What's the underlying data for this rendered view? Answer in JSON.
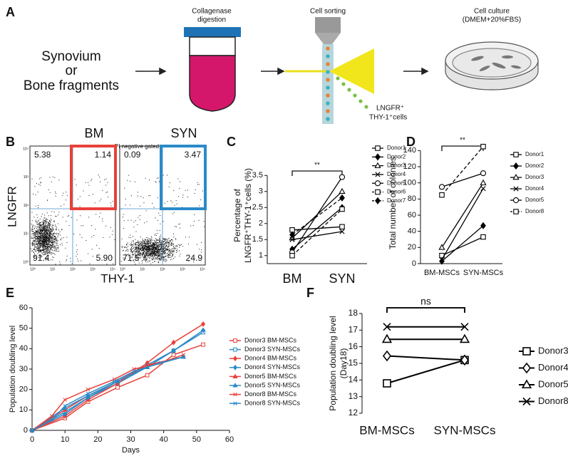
{
  "panel_a": {
    "label": "A",
    "source": [
      "Synovium",
      "or",
      "Bone fragments"
    ],
    "digestion": [
      "Collagenase",
      "digestion"
    ],
    "sorting": "Cell sorting",
    "culture": [
      "Cell culture",
      "(DMEM+20%FBS)"
    ],
    "cells": [
      "LNGFR⁺",
      "THY-1⁺cells"
    ]
  },
  "panel_b": {
    "label": "B",
    "gate": "PI negative gated",
    "ylabel": "LNGFR",
    "xlabel": "THY-1",
    "axis_ticks": [
      "10⁰",
      "10¹",
      "10²",
      "10³",
      "10⁴"
    ],
    "plots": [
      {
        "name": "BM",
        "color": "#e8413a",
        "quadrants": [
          "5.38",
          "1.14",
          "91.4",
          "5.90"
        ]
      },
      {
        "name": "SYN",
        "color": "#2a8ac8",
        "quadrants": [
          "0.09",
          "3.47",
          "71.5",
          "24.9"
        ]
      }
    ]
  },
  "chart_data": [
    {
      "type": "line",
      "panel_label": "C",
      "ylabel": [
        "Percentage of",
        "LNGFR⁺THY-1⁺cells (%)"
      ],
      "annotation": "**",
      "categories": [
        "BM",
        "SYN"
      ],
      "category_colors": [
        "#e8413a",
        "#2a8ac8"
      ],
      "color": "#000000",
      "ylim": [
        0.75,
        3.75
      ],
      "yticks": [
        1,
        1.5,
        2,
        2.5,
        3,
        3.5
      ],
      "series": [
        {
          "name": "Donor1",
          "marker": "square",
          "values": [
            1.8,
            1.9
          ]
        },
        {
          "name": "Donor2",
          "marker": "diamond",
          "filled": true,
          "values": [
            1.2,
            2.5
          ]
        },
        {
          "name": "Donor3",
          "marker": "triangle",
          "values": [
            1.55,
            3.0
          ]
        },
        {
          "name": "Donor4",
          "marker": "x",
          "values": [
            1.5,
            1.75
          ]
        },
        {
          "name": "Donor5",
          "marker": "circle",
          "values": [
            1.1,
            3.45
          ]
        },
        {
          "name": "Donor6",
          "marker": "square",
          "dashed": true,
          "values": [
            1.0,
            2.45
          ]
        },
        {
          "name": "Donor7",
          "marker": "diamond",
          "filled": true,
          "dashed": true,
          "values": [
            1.65,
            2.8
          ]
        }
      ]
    },
    {
      "type": "line",
      "panel_label": "D",
      "ylabel": "Total number of colonies",
      "annotation": "**",
      "categories": [
        "BM-MSCs",
        "SYN-MSCs"
      ],
      "category_colors": [
        "#e8413a",
        "#2a8ac8"
      ],
      "color": "#000000",
      "ylim": [
        0,
        150
      ],
      "yticks": [
        0,
        20,
        40,
        60,
        80,
        100,
        120,
        140
      ],
      "series": [
        {
          "name": "Donor1",
          "marker": "square",
          "values": [
            10,
            33
          ]
        },
        {
          "name": "Donor2",
          "marker": "diamond",
          "filled": true,
          "values": [
            3,
            47
          ]
        },
        {
          "name": "Donor3",
          "marker": "triangle",
          "values": [
            20,
            100
          ]
        },
        {
          "name": "Donor4",
          "marker": "x",
          "values": [
            5,
            93
          ]
        },
        {
          "name": "Donor5",
          "marker": "circle",
          "values": [
            95,
            112
          ]
        },
        {
          "name": "Donor8",
          "marker": "square",
          "dashed": true,
          "values": [
            85,
            145
          ]
        }
      ]
    },
    {
      "type": "line",
      "panel_label": "E",
      "ylabel": "Population doubling level",
      "xlabel": "Days",
      "legend_colored": true,
      "xlim": [
        0,
        60
      ],
      "xticks": [
        0,
        10,
        20,
        30,
        40,
        50,
        60
      ],
      "ylim": [
        0,
        60
      ],
      "yticks": [
        0,
        10,
        20,
        30,
        40,
        50,
        60
      ],
      "series": [
        {
          "name": "Donor3 BM-MSCs",
          "color": "#e8413a",
          "marker": "square",
          "x": [
            0,
            10,
            17,
            26,
            35,
            43,
            52
          ],
          "values": [
            0,
            6,
            14,
            21,
            27,
            37,
            42
          ]
        },
        {
          "name": "Donor3 SYN-MSCs",
          "color": "#2a8ac8",
          "marker": "square",
          "x": [
            0,
            10,
            17,
            26,
            35,
            43,
            52
          ],
          "values": [
            0,
            9,
            16,
            23,
            31,
            39,
            48
          ]
        },
        {
          "name": "Donor4 BM-MSCs",
          "color": "#e8413a",
          "marker": "diamond",
          "filled": true,
          "x": [
            0,
            10,
            17,
            26,
            35,
            43,
            52
          ],
          "values": [
            0,
            7,
            15,
            23,
            33,
            43,
            52
          ]
        },
        {
          "name": "Donor4 SYN-MSCs",
          "color": "#2a8ac8",
          "marker": "diamond",
          "filled": true,
          "x": [
            0,
            10,
            17,
            26,
            35,
            43,
            52
          ],
          "values": [
            0,
            8,
            16,
            24,
            32,
            39,
            49
          ]
        },
        {
          "name": "Donor5 BM-MSCs",
          "color": "#e8413a",
          "marker": "triangle",
          "filled": true,
          "x": [
            0,
            10,
            17,
            26,
            35,
            46
          ],
          "values": [
            0,
            10,
            17,
            24,
            32,
            36
          ]
        },
        {
          "name": "Donor5 SYN-MSCs",
          "color": "#2a8ac8",
          "marker": "triangle",
          "filled": true,
          "x": [
            0,
            10,
            17,
            26,
            35,
            46
          ],
          "values": [
            0,
            11,
            17,
            24,
            31,
            36
          ]
        },
        {
          "name": "Donor8 BM-MSCs",
          "color": "#e8413a",
          "marker": "x",
          "x": [
            0,
            6,
            10,
            17,
            25,
            31,
            39,
            46
          ],
          "values": [
            0,
            7,
            15,
            20,
            25,
            30,
            33,
            37
          ]
        },
        {
          "name": "Donor8 SYN-MSCs",
          "color": "#2a8ac8",
          "marker": "x",
          "x": [
            0,
            6,
            10,
            17,
            25,
            31,
            39,
            46
          ],
          "values": [
            0,
            5,
            12,
            18,
            24,
            29,
            33,
            36
          ]
        }
      ]
    },
    {
      "type": "line",
      "panel_label": "F",
      "ylabel": [
        "Population doubling level",
        "(Day18)"
      ],
      "annotation": "ns",
      "categories": [
        "BM-MSCs",
        "SYN-MSCs"
      ],
      "category_colors": [
        "#e8413a",
        "#2a8ac8"
      ],
      "color": "#000000",
      "ylim": [
        12,
        18
      ],
      "yticks": [
        12,
        13,
        14,
        15,
        16,
        17,
        18
      ],
      "series": [
        {
          "name": "Donor3",
          "marker": "square",
          "values": [
            13.8,
            15.2
          ]
        },
        {
          "name": "Donor4",
          "marker": "diamond",
          "values": [
            15.45,
            15.2
          ]
        },
        {
          "name": "Donor5",
          "marker": "triangle",
          "values": [
            16.45,
            16.45
          ]
        },
        {
          "name": "Donor8",
          "marker": "x",
          "values": [
            17.2,
            17.2
          ]
        }
      ]
    }
  ]
}
